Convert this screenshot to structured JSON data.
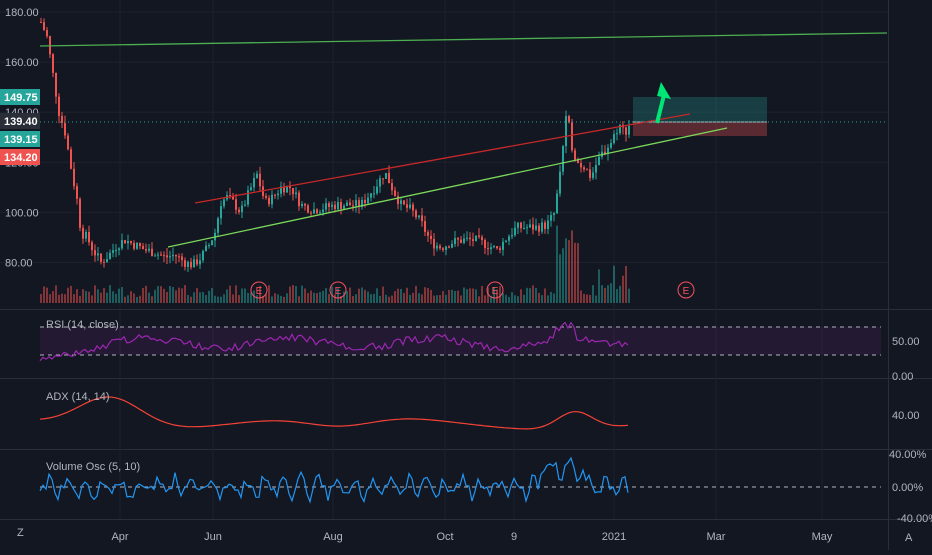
{
  "chart_data": [
    {
      "type": "candlestick",
      "name_label": "",
      "ylim": [
        65,
        184
      ],
      "y_ticks": [
        80,
        100,
        120,
        140,
        160,
        180
      ],
      "y_tick_labels": [
        "80.00",
        "100.00",
        "120.00",
        "140.00",
        "160.00",
        "180.00"
      ],
      "price_badges": [
        {
          "value": 149.75,
          "label": "149.75",
          "color": "#26a69a"
        },
        {
          "value": 139.4,
          "label": "139.40",
          "color": "#2a2e39"
        },
        {
          "value": 139.15,
          "label": "139.15",
          "color": "#26a69a"
        },
        {
          "value": 134.2,
          "label": "134.20",
          "color": "#ef5350"
        }
      ],
      "x_labels": [
        "Apr",
        "Jun",
        "Aug",
        "Oct",
        "9",
        "2021",
        "Mar",
        "May"
      ],
      "earnings_markers": [
        "E",
        "E",
        "E",
        "E"
      ],
      "colors": {
        "up": "#26a69a",
        "down": "#ef5350",
        "trend_green": "#4caf50",
        "trend_red": "#d32f2f",
        "arrow": "#00e676"
      }
    },
    {
      "type": "line",
      "name_label": "RSI (14, close)",
      "ylim": [
        0,
        80
      ],
      "y_tick_labels": [
        "50.00",
        "0.00"
      ],
      "bands": [
        70,
        30
      ],
      "color": "#9c27b0"
    },
    {
      "type": "line",
      "name_label": "ADX (14, 14)",
      "y_tick_labels": [
        "40.00"
      ],
      "color": "#f44336"
    },
    {
      "type": "line",
      "name_label": "Volume Osc (5, 10)",
      "y_tick_labels": [
        "40.00%",
        "0.00%",
        "-40.00%"
      ],
      "color": "#2196f3"
    }
  ],
  "footer": {
    "left_icon": "Z",
    "right_icon": "A"
  }
}
